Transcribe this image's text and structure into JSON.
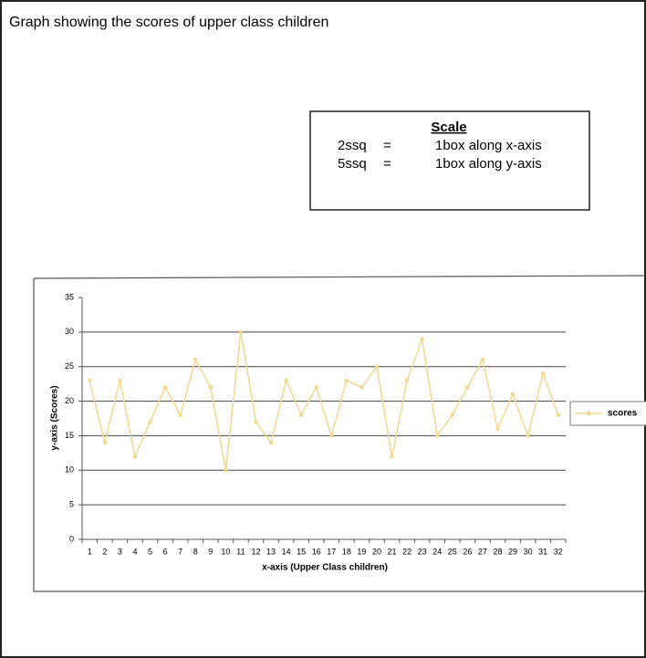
{
  "heading": "Graph showing the scores of upper class children",
  "scale": {
    "title": "Scale",
    "rows": [
      [
        "2ssq",
        "=",
        "1box along x-axis"
      ],
      [
        "5ssq",
        "=",
        "1box along y-axis"
      ]
    ]
  },
  "chart_data": {
    "type": "line",
    "xlabel": "x-axis (Upper Class children)",
    "ylabel": "y-axis (Scores)",
    "categories": [
      1,
      2,
      3,
      4,
      5,
      6,
      7,
      8,
      9,
      10,
      11,
      12,
      13,
      14,
      15,
      16,
      17,
      18,
      19,
      20,
      21,
      22,
      23,
      24,
      25,
      26,
      27,
      28,
      29,
      30,
      31,
      32
    ],
    "series": [
      {
        "name": "scores",
        "color": "#f0d890",
        "values": [
          23,
          14,
          23,
          12,
          17,
          22,
          18,
          26,
          22,
          10,
          30,
          17,
          14,
          23,
          18,
          22,
          15,
          23,
          22,
          25,
          12,
          23,
          29,
          15,
          18,
          22,
          26,
          16,
          21,
          15,
          24,
          18
        ]
      }
    ],
    "ylim": [
      0,
      35
    ],
    "yticks": [
      0,
      5,
      10,
      15,
      20,
      25,
      30,
      35
    ],
    "grid": true,
    "legend": "right"
  }
}
